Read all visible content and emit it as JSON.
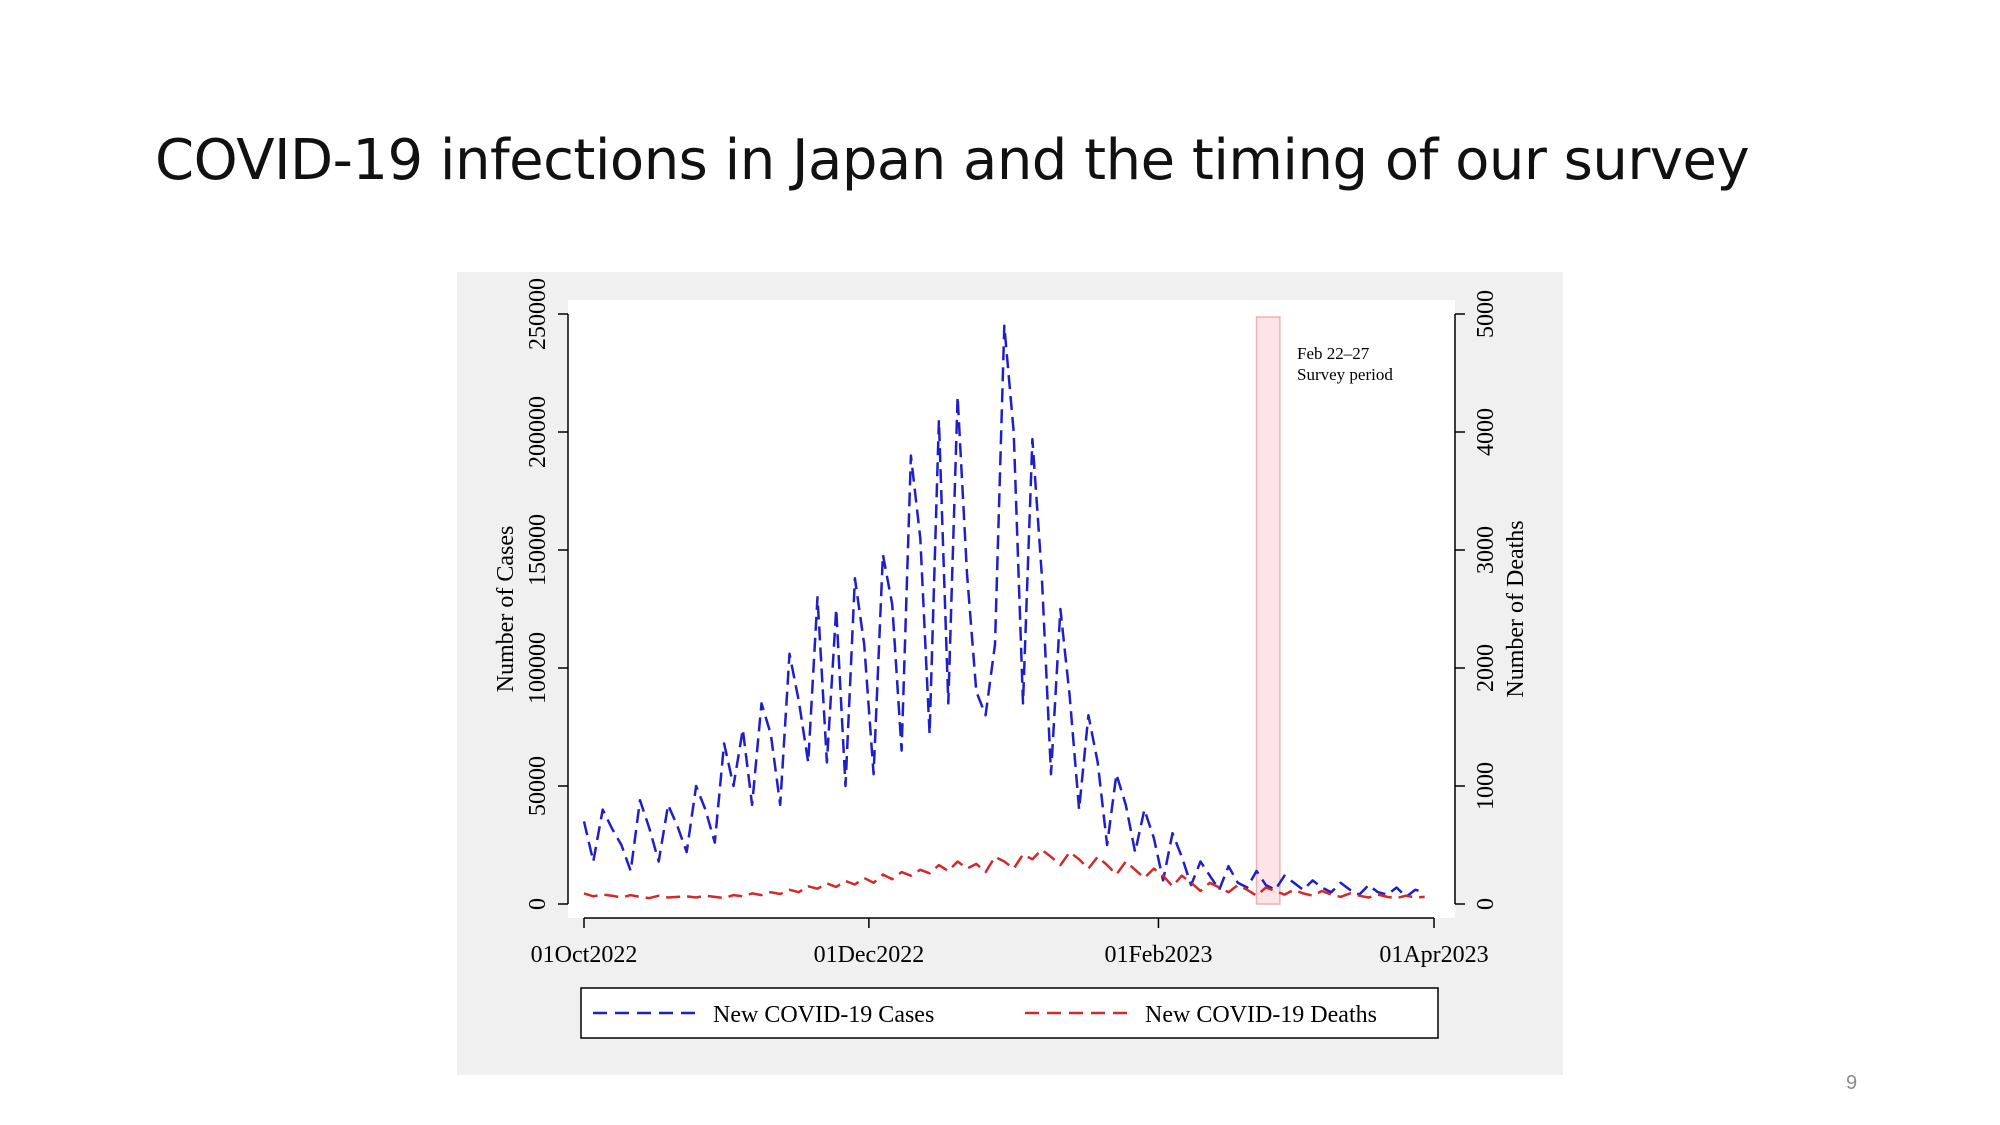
{
  "slide": {
    "title": "COVID-19 infections in Japan and the timing of our survey",
    "page_number": "9"
  },
  "chart_data": {
    "type": "line",
    "title": "",
    "xlabel": "",
    "ylabel": "Number of Cases",
    "ylabel_right": "Number of Deaths",
    "x_ticks": [
      "01Oct2022",
      "01Dec2022",
      "01Feb2023",
      "01Apr2023"
    ],
    "x_range": [
      "2022-10-01",
      "2023-04-01"
    ],
    "y_ticks_left": [
      "0",
      "50000",
      "100000",
      "150000",
      "200000",
      "250000"
    ],
    "y_ticks_right": [
      "0",
      "1000",
      "2000",
      "3000",
      "4000",
      "5000"
    ],
    "ylim_left": [
      0,
      250000
    ],
    "ylim_right": [
      0,
      5000
    ],
    "grid": false,
    "legend_position": "bottom",
    "annotation": {
      "lines": [
        "Feb 22–27",
        "Survey period"
      ],
      "shade_start": "2023-02-22",
      "shade_end": "2023-02-27",
      "shade_color": "#fde4e6"
    },
    "x_dates": [
      "2022-10-01",
      "2022-10-03",
      "2022-10-05",
      "2022-10-07",
      "2022-10-09",
      "2022-10-11",
      "2022-10-13",
      "2022-10-15",
      "2022-10-17",
      "2022-10-19",
      "2022-10-21",
      "2022-10-23",
      "2022-10-25",
      "2022-10-27",
      "2022-10-29",
      "2022-10-31",
      "2022-11-02",
      "2022-11-04",
      "2022-11-06",
      "2022-11-08",
      "2022-11-10",
      "2022-11-12",
      "2022-11-14",
      "2022-11-16",
      "2022-11-18",
      "2022-11-20",
      "2022-11-22",
      "2022-11-24",
      "2022-11-26",
      "2022-11-28",
      "2022-11-30",
      "2022-12-02",
      "2022-12-04",
      "2022-12-06",
      "2022-12-08",
      "2022-12-10",
      "2022-12-12",
      "2022-12-14",
      "2022-12-16",
      "2022-12-18",
      "2022-12-20",
      "2022-12-22",
      "2022-12-24",
      "2022-12-26",
      "2022-12-28",
      "2022-12-30",
      "2023-01-01",
      "2023-01-03",
      "2023-01-05",
      "2023-01-07",
      "2023-01-09",
      "2023-01-11",
      "2023-01-13",
      "2023-01-15",
      "2023-01-17",
      "2023-01-19",
      "2023-01-21",
      "2023-01-23",
      "2023-01-25",
      "2023-01-27",
      "2023-01-29",
      "2023-01-31",
      "2023-02-02",
      "2023-02-04",
      "2023-02-06",
      "2023-02-08",
      "2023-02-10",
      "2023-02-12",
      "2023-02-14",
      "2023-02-16",
      "2023-02-18",
      "2023-02-20",
      "2023-02-22",
      "2023-02-24",
      "2023-02-26",
      "2023-02-28",
      "2023-03-02",
      "2023-03-04",
      "2023-03-06",
      "2023-03-08",
      "2023-03-10",
      "2023-03-12",
      "2023-03-14",
      "2023-03-16",
      "2023-03-18",
      "2023-03-20",
      "2023-03-22",
      "2023-03-24",
      "2023-03-26",
      "2023-03-28",
      "2023-03-30"
    ],
    "series": [
      {
        "name": "New COVID-19 Cases",
        "axis": "left",
        "color": "#1f1fc8",
        "values": [
          35000,
          18000,
          40000,
          32000,
          25000,
          14000,
          44000,
          32000,
          18000,
          42000,
          33000,
          22000,
          50000,
          40000,
          26000,
          68000,
          50000,
          74000,
          42000,
          85000,
          72000,
          42000,
          106000,
          86000,
          60000,
          130000,
          60000,
          125000,
          50000,
          138000,
          110000,
          55000,
          148000,
          127000,
          65000,
          190000,
          155000,
          72000,
          205000,
          85000,
          215000,
          140000,
          90000,
          80000,
          110000,
          245000,
          200000,
          85000,
          197000,
          140000,
          55000,
          125000,
          88000,
          40000,
          80000,
          60000,
          25000,
          55000,
          42000,
          22000,
          40000,
          28000,
          10000,
          30000,
          20000,
          8000,
          18000,
          12000,
          6000,
          16000,
          9000,
          7000,
          14000,
          8000,
          6000,
          12000,
          9000,
          6000,
          10000,
          7000,
          5000,
          9000,
          6000,
          4000,
          8000,
          5000,
          4000,
          7000,
          3000,
          6000,
          5000
        ]
      },
      {
        "name": "New COVID-19 Deaths",
        "axis": "right",
        "color": "#d12a2a",
        "values": [
          90,
          65,
          80,
          70,
          55,
          75,
          60,
          50,
          70,
          55,
          60,
          65,
          55,
          70,
          60,
          50,
          75,
          65,
          90,
          75,
          100,
          85,
          120,
          100,
          150,
          130,
          175,
          145,
          195,
          165,
          220,
          180,
          250,
          210,
          270,
          240,
          290,
          260,
          330,
          280,
          360,
          300,
          340,
          270,
          400,
          360,
          300,
          420,
          380,
          460,
          400,
          330,
          440,
          380,
          300,
          400,
          330,
          250,
          360,
          290,
          220,
          300,
          240,
          150,
          240,
          180,
          110,
          180,
          140,
          100,
          160,
          120,
          70,
          140,
          110,
          80,
          120,
          90,
          70,
          110,
          80,
          60,
          90,
          70,
          55,
          80,
          60,
          50,
          70,
          55,
          60
        ]
      }
    ]
  }
}
